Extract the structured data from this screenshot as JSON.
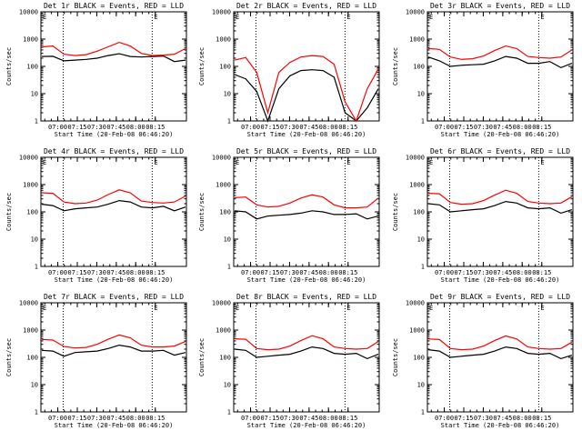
{
  "chart_data": [
    {
      "type": "line",
      "title": "Det 1r BLACK = Events, RED = LLD",
      "xlabel": "Start Time (20-Feb-08 06:46:20)",
      "ylabel": "Counts/sec",
      "ylog": true,
      "ylim": [
        1,
        10000
      ],
      "y_ticks": [
        "1",
        "10",
        "100",
        "1000",
        "10000"
      ],
      "x_ticks": [
        "07:00",
        "07:15",
        "07:30",
        "07:45",
        "08:00",
        "08:15"
      ],
      "corner_labels": [
        "E",
        "E"
      ],
      "series": [
        {
          "color": "#000000",
          "values": [
            230,
            235,
            160,
            170,
            180,
            200,
            250,
            290,
            230,
            220,
            230,
            240,
            150,
            170
          ]
        },
        {
          "color": "#ff0000",
          "values": [
            520,
            560,
            280,
            250,
            270,
            360,
            520,
            760,
            560,
            300,
            250,
            260,
            280,
            450
          ]
        }
      ]
    },
    {
      "type": "line",
      "title": "Det 2r BLACK = Events, RED = LLD",
      "xlabel": "Start Time (20-Feb-08 06:46:20)",
      "ylabel": "Counts/sec",
      "ylog": true,
      "ylim": [
        1,
        10000
      ],
      "y_ticks": [
        "1",
        "10",
        "100",
        "1000",
        "10000"
      ],
      "x_ticks": [
        "07:00",
        "07:15",
        "07:30",
        "07:45",
        "08:00",
        "08:15"
      ],
      "corner_labels": [
        "E",
        "E"
      ],
      "series": [
        {
          "color": "#000000",
          "values": [
            50,
            35,
            12,
            1,
            15,
            45,
            70,
            75,
            70,
            40,
            2,
            1,
            3,
            15
          ]
        },
        {
          "color": "#ff0000",
          "values": [
            170,
            210,
            60,
            2,
            60,
            140,
            220,
            250,
            230,
            120,
            5,
            1,
            15,
            80
          ]
        }
      ]
    },
    {
      "type": "line",
      "title": "Det 3r BLACK = Events, RED = LLD",
      "xlabel": "Start Time (20-Feb-08 06:46:20)",
      "ylabel": "Counts/sec",
      "ylog": true,
      "ylim": [
        1,
        10000
      ],
      "y_ticks": [
        "1",
        "10",
        "100",
        "1000",
        "10000"
      ],
      "x_ticks": [
        "07:00",
        "07:15",
        "07:30",
        "07:45",
        "08:00",
        "08:15"
      ],
      "corner_labels": [
        "E",
        "E"
      ],
      "series": [
        {
          "color": "#000000",
          "values": [
            220,
            160,
            100,
            110,
            115,
            120,
            160,
            230,
            200,
            130,
            130,
            150,
            90,
            130
          ]
        },
        {
          "color": "#ff0000",
          "values": [
            450,
            420,
            220,
            180,
            190,
            240,
            380,
            560,
            450,
            230,
            210,
            200,
            220,
            400
          ]
        }
      ]
    },
    {
      "type": "line",
      "title": "Det 4r BLACK = Events, RED = LLD",
      "xlabel": "Start Time (20-Feb-08 06:46:20)",
      "ylabel": "Counts/sec",
      "ylog": true,
      "ylim": [
        1,
        10000
      ],
      "y_ticks": [
        "1",
        "10",
        "100",
        "1000",
        "10000"
      ],
      "x_ticks": [
        "07:00",
        "07:15",
        "07:30",
        "07:45",
        "08:00",
        "08:15"
      ],
      "corner_labels": [
        "E",
        "E"
      ],
      "series": [
        {
          "color": "#000000",
          "values": [
            190,
            170,
            110,
            130,
            140,
            150,
            190,
            260,
            230,
            150,
            140,
            160,
            110,
            150
          ]
        },
        {
          "color": "#ff0000",
          "values": [
            500,
            480,
            230,
            200,
            210,
            270,
            430,
            640,
            500,
            250,
            220,
            210,
            230,
            380
          ]
        }
      ]
    },
    {
      "type": "line",
      "title": "Det 5r BLACK = Events, RED = LLD",
      "xlabel": "Start Time (20-Feb-08 06:46:20)",
      "ylabel": "Counts/sec",
      "ylog": true,
      "ylim": [
        1,
        10000
      ],
      "y_ticks": [
        "1",
        "10",
        "100",
        "1000",
        "10000"
      ],
      "x_ticks": [
        "07:00",
        "07:15",
        "07:30",
        "07:45",
        "08:00",
        "08:15"
      ],
      "corner_labels": [
        "E",
        "E"
      ],
      "series": [
        {
          "color": "#000000",
          "values": [
            110,
            100,
            55,
            70,
            75,
            80,
            90,
            110,
            100,
            80,
            80,
            85,
            55,
            70
          ]
        },
        {
          "color": "#ff0000",
          "values": [
            330,
            350,
            180,
            150,
            160,
            210,
            320,
            420,
            350,
            180,
            140,
            140,
            150,
            320
          ]
        }
      ]
    },
    {
      "type": "line",
      "title": "Det 6r BLACK = Events, RED = LLD",
      "xlabel": "Start Time (20-Feb-08 06:46:20)",
      "ylabel": "Counts/sec",
      "ylog": true,
      "ylim": [
        1,
        10000
      ],
      "y_ticks": [
        "1",
        "10",
        "100",
        "1000",
        "10000"
      ],
      "x_ticks": [
        "07:00",
        "07:15",
        "07:30",
        "07:45",
        "08:00",
        "08:15"
      ],
      "corner_labels": [
        "E",
        "E"
      ],
      "series": [
        {
          "color": "#000000",
          "values": [
            200,
            180,
            100,
            110,
            120,
            130,
            170,
            240,
            210,
            140,
            130,
            140,
            90,
            120
          ]
        },
        {
          "color": "#ff0000",
          "values": [
            480,
            460,
            220,
            190,
            200,
            260,
            410,
            620,
            480,
            240,
            210,
            200,
            210,
            360
          ]
        }
      ]
    },
    {
      "type": "line",
      "title": "Det 7r BLACK = Events, RED = LLD",
      "xlabel": "Start Time (20-Feb-08 06:46:20)",
      "ylabel": "Counts/sec",
      "ylog": true,
      "ylim": [
        1,
        10000
      ],
      "y_ticks": [
        "1",
        "10",
        "100",
        "1000",
        "10000"
      ],
      "x_ticks": [
        "07:00",
        "07:15",
        "07:30",
        "07:45",
        "08:00",
        "08:15"
      ],
      "corner_labels": [
        "E",
        "E"
      ],
      "series": [
        {
          "color": "#000000",
          "values": [
            180,
            170,
            110,
            150,
            160,
            170,
            210,
            280,
            240,
            170,
            170,
            180,
            120,
            150
          ]
        },
        {
          "color": "#ff0000",
          "values": [
            450,
            430,
            250,
            220,
            230,
            300,
            460,
            660,
            520,
            280,
            240,
            240,
            260,
            380
          ]
        }
      ]
    },
    {
      "type": "line",
      "title": "Det 8r BLACK = Events, RED = LLD",
      "xlabel": "Start Time (20-Feb-08 06:46:20)",
      "ylabel": "Counts/sec",
      "ylog": true,
      "ylim": [
        1,
        10000
      ],
      "y_ticks": [
        "1",
        "10",
        "100",
        "1000",
        "10000"
      ],
      "x_ticks": [
        "07:00",
        "07:15",
        "07:30",
        "07:45",
        "08:00",
        "08:15"
      ],
      "corner_labels": [
        "E",
        "E"
      ],
      "series": [
        {
          "color": "#000000",
          "values": [
            200,
            180,
            100,
            110,
            120,
            130,
            170,
            240,
            210,
            140,
            130,
            140,
            90,
            130
          ]
        },
        {
          "color": "#ff0000",
          "values": [
            480,
            460,
            210,
            190,
            200,
            260,
            410,
            620,
            480,
            240,
            210,
            200,
            210,
            380
          ]
        }
      ]
    },
    {
      "type": "line",
      "title": "Det 9r BLACK = Events, RED = LLD",
      "xlabel": "Start Time (20-Feb-08 06:46:20)",
      "ylabel": "Counts/sec",
      "ylog": true,
      "ylim": [
        1,
        10000
      ],
      "y_ticks": [
        "1",
        "10",
        "100",
        "1000",
        "10000"
      ],
      "x_ticks": [
        "07:00",
        "07:15",
        "07:30",
        "07:45",
        "08:00",
        "08:15"
      ],
      "corner_labels": [
        "E",
        "E"
      ],
      "series": [
        {
          "color": "#000000",
          "values": [
            190,
            170,
            100,
            110,
            120,
            130,
            170,
            240,
            210,
            140,
            130,
            140,
            90,
            120
          ]
        },
        {
          "color": "#ff0000",
          "values": [
            470,
            450,
            210,
            190,
            200,
            260,
            410,
            610,
            470,
            240,
            210,
            200,
            210,
            360
          ]
        }
      ]
    }
  ]
}
